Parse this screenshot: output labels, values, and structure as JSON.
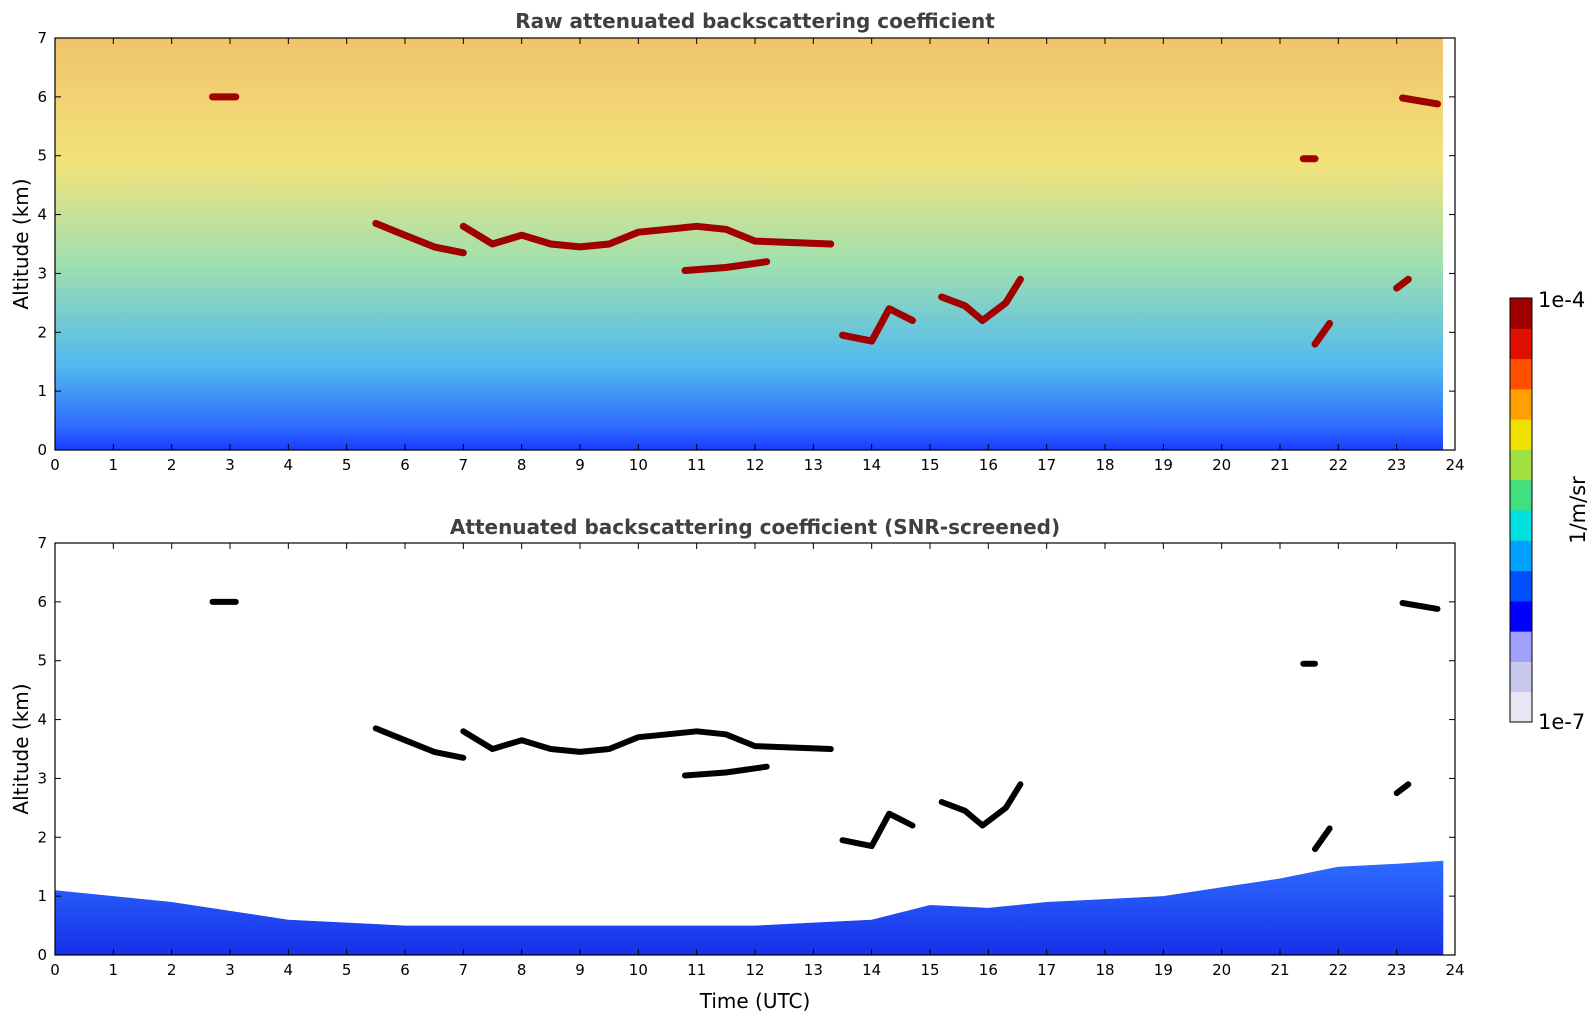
{
  "chart_data": [
    {
      "type": "heatmap",
      "title": "Raw attenuated backscattering coefficient",
      "xlabel": "",
      "ylabel": "Altitude (km)",
      "xlim": [
        0,
        24
      ],
      "ylim": [
        0,
        7
      ],
      "xticks": [
        "0",
        "1",
        "2",
        "3",
        "4",
        "5",
        "6",
        "7",
        "8",
        "9",
        "10",
        "11",
        "12",
        "13",
        "14",
        "15",
        "16",
        "17",
        "18",
        "19",
        "20",
        "21",
        "22",
        "23",
        "24"
      ],
      "yticks": [
        "0",
        "1",
        "2",
        "3",
        "4",
        "5",
        "6",
        "7"
      ],
      "data_end_time": 23.8,
      "cloud_layers": [
        {
          "points": [
            [
              2.7,
              6.0
            ],
            [
              3.1,
              6.0
            ]
          ]
        },
        {
          "points": [
            [
              5.5,
              3.85
            ],
            [
              6.0,
              3.65
            ],
            [
              6.5,
              3.45
            ],
            [
              7.0,
              3.35
            ]
          ]
        },
        {
          "points": [
            [
              7.0,
              3.8
            ],
            [
              7.5,
              3.5
            ],
            [
              8.0,
              3.65
            ],
            [
              8.5,
              3.5
            ],
            [
              9.0,
              3.45
            ],
            [
              9.5,
              3.5
            ],
            [
              10.0,
              3.7
            ],
            [
              10.5,
              3.75
            ],
            [
              11.0,
              3.8
            ],
            [
              11.5,
              3.75
            ],
            [
              12.0,
              3.55
            ],
            [
              13.3,
              3.5
            ]
          ]
        },
        {
          "points": [
            [
              10.8,
              3.05
            ],
            [
              11.5,
              3.1
            ],
            [
              12.2,
              3.2
            ]
          ]
        },
        {
          "points": [
            [
              13.5,
              1.95
            ],
            [
              14.0,
              1.85
            ],
            [
              14.3,
              2.4
            ],
            [
              14.7,
              2.2
            ]
          ]
        },
        {
          "points": [
            [
              15.2,
              2.6
            ],
            [
              15.6,
              2.45
            ],
            [
              15.9,
              2.2
            ],
            [
              16.3,
              2.5
            ],
            [
              16.55,
              2.9
            ]
          ]
        },
        {
          "points": [
            [
              21.4,
              4.95
            ],
            [
              21.6,
              4.95
            ]
          ]
        },
        {
          "points": [
            [
              21.6,
              1.8
            ],
            [
              21.85,
              2.15
            ]
          ]
        },
        {
          "points": [
            [
              23.0,
              2.75
            ],
            [
              23.2,
              2.9
            ]
          ]
        },
        {
          "points": [
            [
              23.1,
              5.98
            ],
            [
              23.7,
              5.88
            ]
          ]
        }
      ]
    },
    {
      "type": "heatmap",
      "title": "Attenuated backscattering coefficient (SNR-screened)",
      "xlabel": "Time (UTC)",
      "ylabel": "Altitude (km)",
      "xlim": [
        0,
        24
      ],
      "ylim": [
        0,
        7
      ],
      "xticks": [
        "0",
        "1",
        "2",
        "3",
        "4",
        "5",
        "6",
        "7",
        "8",
        "9",
        "10",
        "11",
        "12",
        "13",
        "14",
        "15",
        "16",
        "17",
        "18",
        "19",
        "20",
        "21",
        "22",
        "23",
        "24"
      ],
      "yticks": [
        "0",
        "1",
        "2",
        "3",
        "4",
        "5",
        "6",
        "7"
      ],
      "data_end_time": 23.8,
      "boundary_layer_top": [
        [
          0,
          1.1
        ],
        [
          1,
          1.0
        ],
        [
          2,
          0.9
        ],
        [
          3,
          0.75
        ],
        [
          4,
          0.6
        ],
        [
          5,
          0.55
        ],
        [
          6,
          0.5
        ],
        [
          7,
          0.5
        ],
        [
          8,
          0.5
        ],
        [
          9,
          0.5
        ],
        [
          10,
          0.5
        ],
        [
          11,
          0.5
        ],
        [
          12,
          0.5
        ],
        [
          13,
          0.55
        ],
        [
          14,
          0.6
        ],
        [
          15,
          0.85
        ],
        [
          16,
          0.8
        ],
        [
          17,
          0.9
        ],
        [
          18,
          0.95
        ],
        [
          19,
          1.0
        ],
        [
          20,
          1.15
        ],
        [
          21,
          1.3
        ],
        [
          22,
          1.5
        ],
        [
          23,
          1.55
        ],
        [
          23.8,
          1.6
        ]
      ]
    }
  ],
  "colorbar": {
    "label": "1/m/sr",
    "max_label": "1e-4",
    "min_label": "1e-7",
    "colors": [
      "#e6e6f5",
      "#c8c8ee",
      "#a0a0ff",
      "#0000ff",
      "#0050ff",
      "#00a0ff",
      "#00e0e0",
      "#40e080",
      "#a0e040",
      "#f0e000",
      "#ffa000",
      "#ff5000",
      "#e01000",
      "#a00000"
    ]
  },
  "colors": {
    "cloud": "#a00000",
    "screened_cloud": "#000000",
    "noise_bg_low": "#1a3cff",
    "noise_bg_high": "#ffffff"
  }
}
